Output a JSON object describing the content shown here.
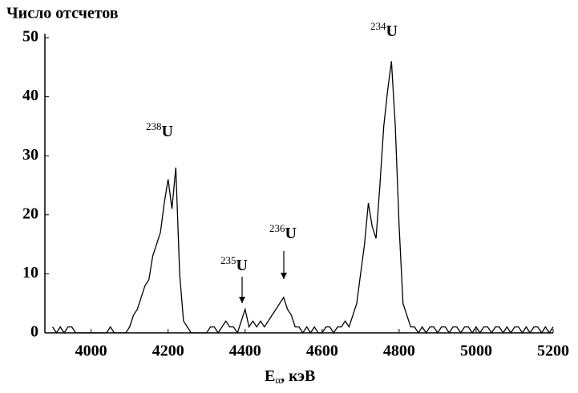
{
  "chart_data": {
    "type": "line",
    "title": "Число отсчетов",
    "x_label": {
      "main": "E",
      "sub": "α",
      "rest": ", кэВ"
    },
    "color": "#000000",
    "x": [
      3900,
      3910,
      3920,
      3930,
      3940,
      3950,
      3960,
      3970,
      3980,
      3990,
      4000,
      4010,
      4020,
      4030,
      4040,
      4050,
      4060,
      4070,
      4080,
      4090,
      4100,
      4110,
      4120,
      4130,
      4140,
      4150,
      4160,
      4170,
      4180,
      4190,
      4200,
      4210,
      4220,
      4230,
      4240,
      4250,
      4260,
      4270,
      4280,
      4290,
      4300,
      4310,
      4320,
      4330,
      4340,
      4350,
      4360,
      4370,
      4380,
      4390,
      4400,
      4410,
      4420,
      4430,
      4440,
      4450,
      4460,
      4470,
      4480,
      4490,
      4500,
      4510,
      4520,
      4530,
      4540,
      4550,
      4560,
      4570,
      4580,
      4590,
      4600,
      4610,
      4620,
      4630,
      4640,
      4650,
      4660,
      4670,
      4680,
      4690,
      4700,
      4710,
      4720,
      4730,
      4740,
      4750,
      4760,
      4770,
      4780,
      4790,
      4800,
      4810,
      4820,
      4830,
      4840,
      4850,
      4860,
      4870,
      4880,
      4890,
      4900,
      4910,
      4920,
      4930,
      4940,
      4950,
      4960,
      4970,
      4980,
      4990,
      5000,
      5010,
      5020,
      5030,
      5040,
      5050,
      5060,
      5070,
      5080,
      5090,
      5100,
      5110,
      5120,
      5130,
      5140,
      5150,
      5160,
      5170,
      5180,
      5190,
      5200
    ],
    "values": [
      1,
      0,
      1,
      0,
      1,
      1,
      0,
      0,
      0,
      0,
      0,
      0,
      0,
      0,
      0,
      1,
      0,
      0,
      0,
      0,
      1,
      3,
      4,
      6,
      8,
      9,
      13,
      15,
      17,
      22,
      26,
      21,
      28,
      10,
      2,
      1,
      0,
      0,
      0,
      0,
      0,
      1,
      1,
      0,
      1,
      2,
      1,
      1,
      0,
      2,
      4,
      1,
      2,
      1,
      2,
      1,
      2,
      3,
      4,
      5,
      6,
      4,
      3,
      1,
      1,
      0,
      1,
      0,
      1,
      0,
      0,
      1,
      1,
      0,
      1,
      1,
      2,
      1,
      3,
      5,
      10,
      15,
      22,
      18,
      16,
      25,
      35,
      41,
      46,
      35,
      18,
      5,
      3,
      1,
      1,
      0,
      1,
      0,
      1,
      1,
      0,
      1,
      1,
      0,
      1,
      1,
      0,
      1,
      1,
      0,
      1,
      0,
      1,
      1,
      0,
      1,
      1,
      0,
      1,
      0,
      1,
      1,
      0,
      1,
      0,
      1,
      1,
      0,
      1,
      0,
      1
    ],
    "xlim": [
      3880,
      5200
    ],
    "ylim": [
      0,
      50
    ],
    "xticks": [
      4000,
      4200,
      4400,
      4600,
      4800,
      5000,
      5200
    ],
    "yticks": [
      0,
      10,
      20,
      30,
      40,
      50
    ],
    "annotations": [
      {
        "sup": "238",
        "text": "U"
      },
      {
        "sup": "235",
        "text": "U"
      },
      {
        "sup": "236",
        "text": "U"
      },
      {
        "sup": "234",
        "text": "U"
      }
    ]
  }
}
